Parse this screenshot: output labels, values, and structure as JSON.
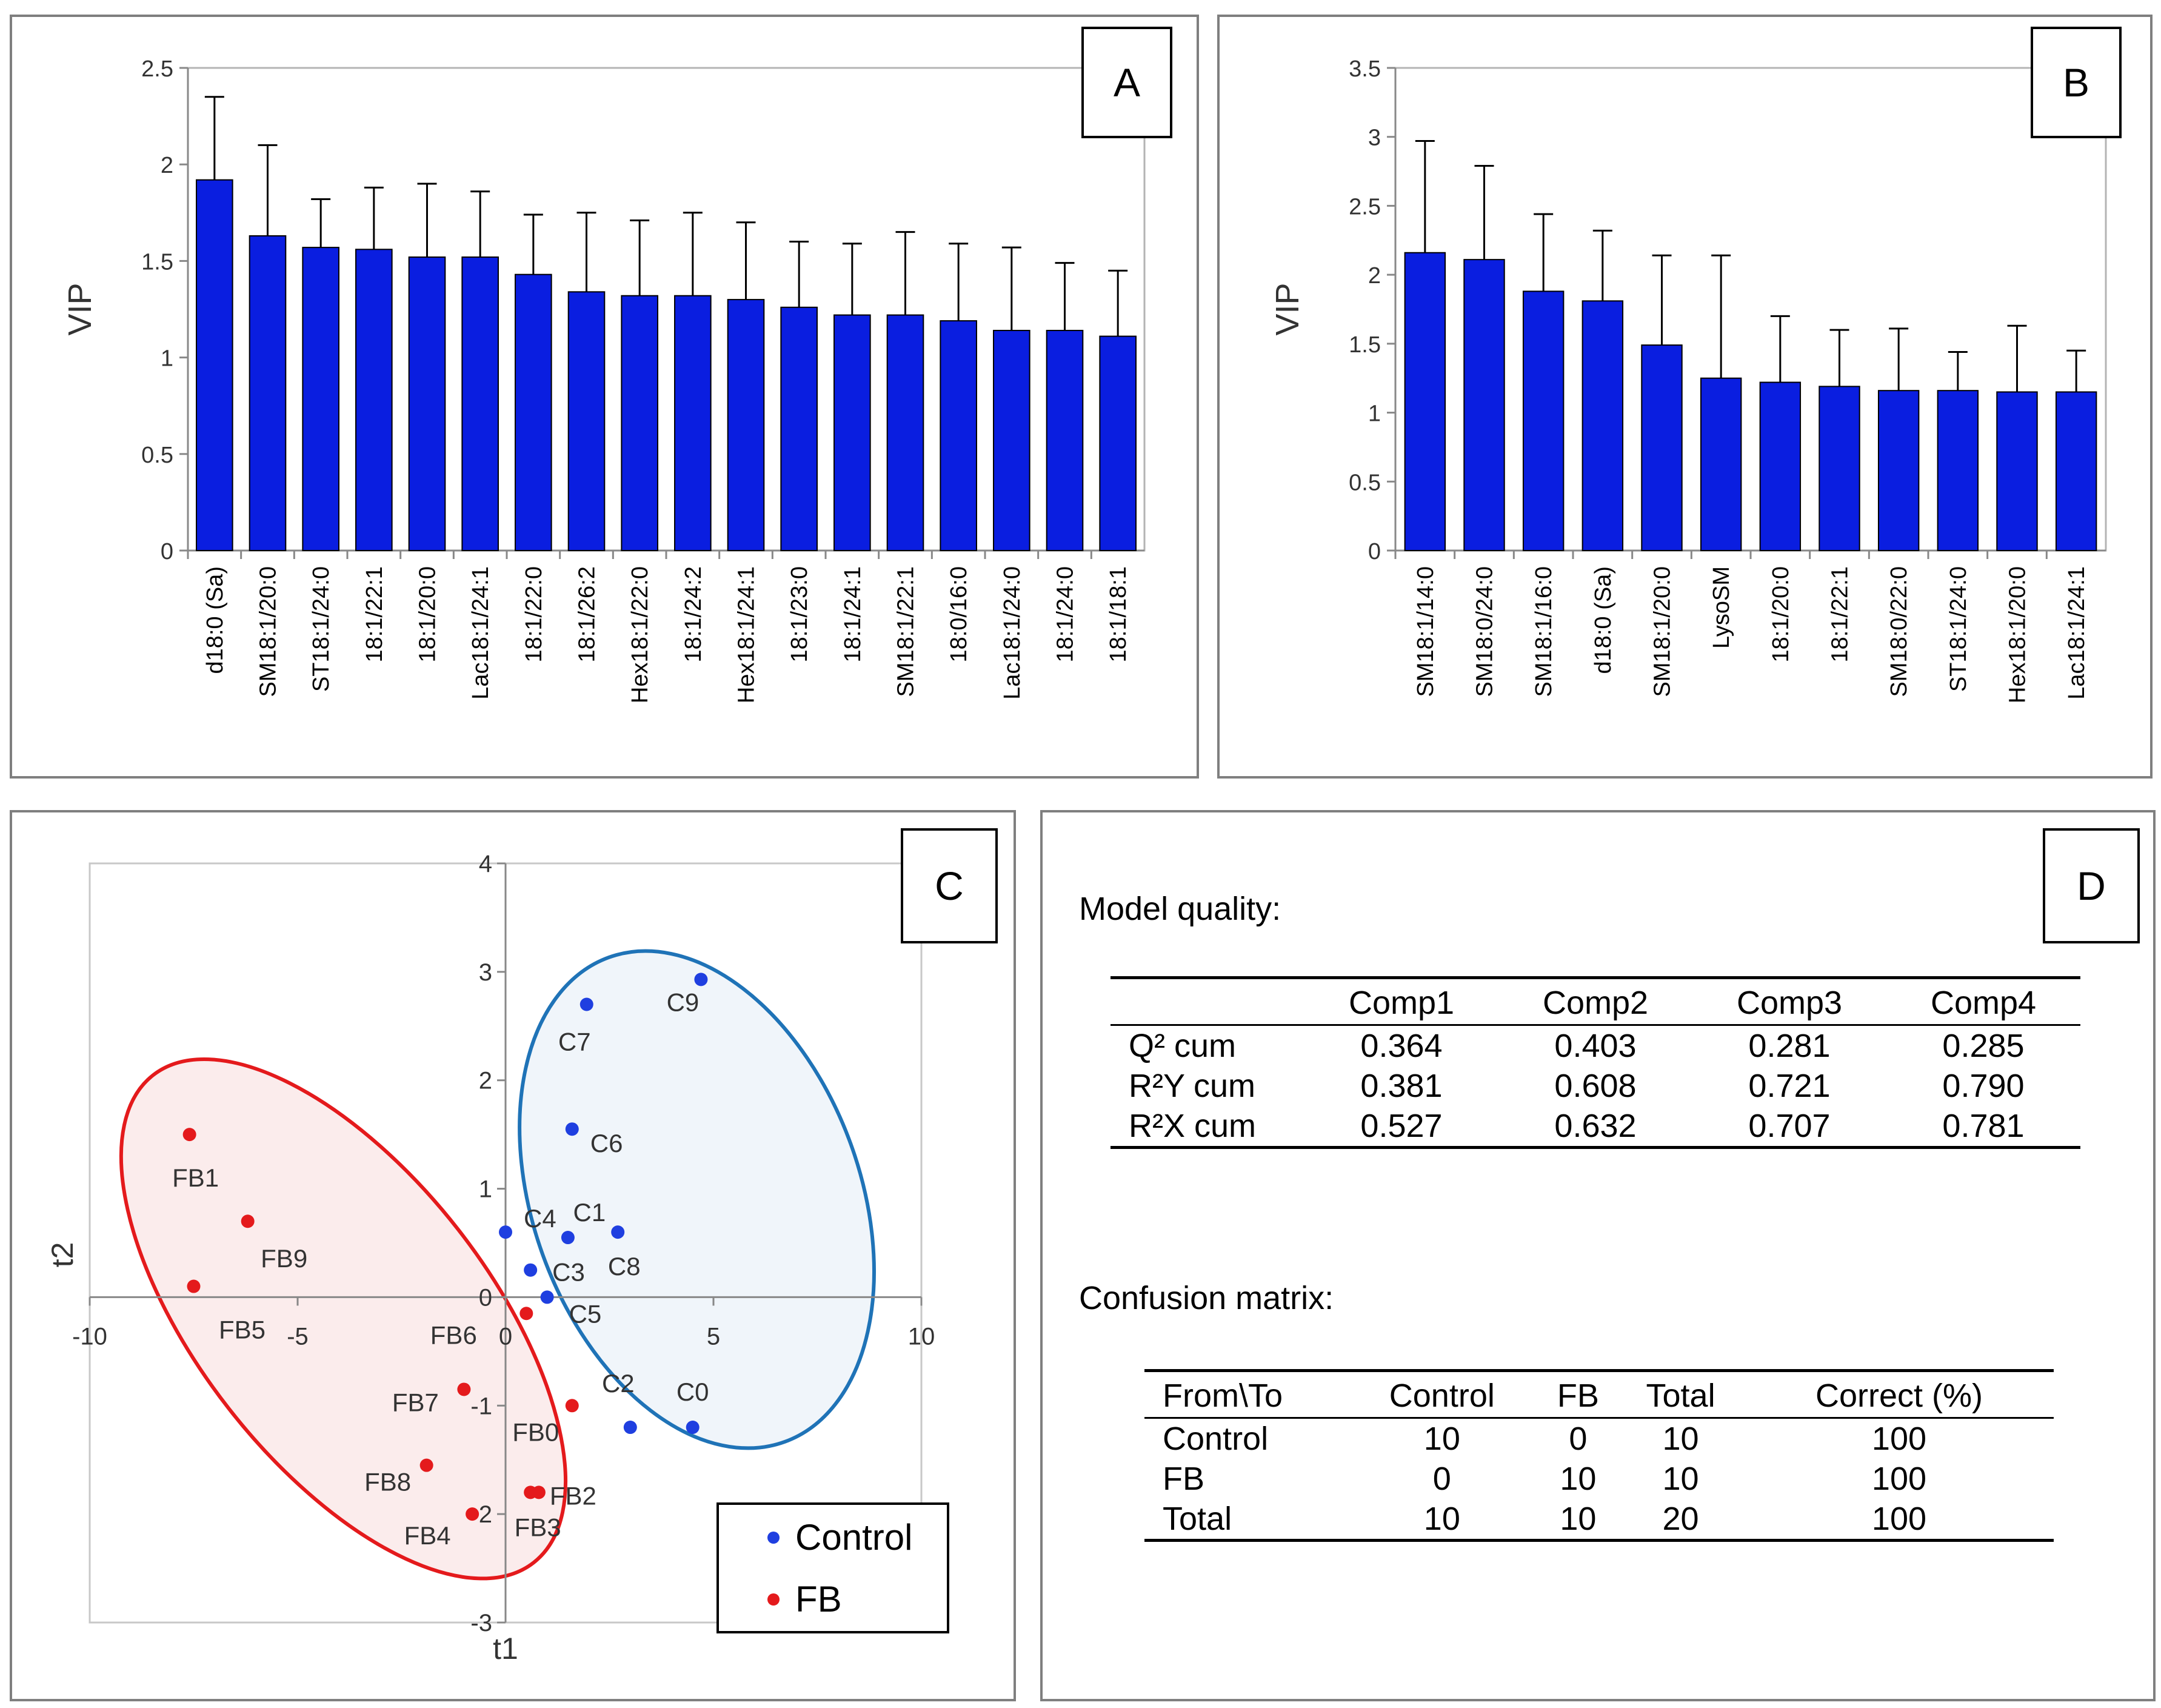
{
  "panels": {
    "A": {
      "label": "A"
    },
    "B": {
      "label": "B"
    },
    "C": {
      "label": "C"
    },
    "D": {
      "label": "D"
    }
  },
  "chart_data": [
    {
      "id": "A",
      "type": "bar",
      "ylabel": "VIP",
      "ylim": [
        0,
        2.5
      ],
      "yticks": [
        "0",
        "0.5",
        "1",
        "1.5",
        "2",
        "2.5"
      ],
      "color": "#0a1ee0",
      "categories": [
        "d18:0 (Sa)",
        "SM18:1/20:0",
        "ST18:1/24:0",
        "18:1/22:1",
        "18:1/20:0",
        "Lac18:1/24:1",
        "18:1/22:0",
        "18:1/26:2",
        "Hex18:1/22:0",
        "18:1/24:2",
        "Hex18:1/24:1",
        "18:1/23:0",
        "18:1/24:1",
        "SM18:1/22:1",
        "18:0/16:0",
        "Lac18:1/24:0",
        "18:1/24:0",
        "18:1/18:1"
      ],
      "values": [
        1.92,
        1.63,
        1.57,
        1.56,
        1.52,
        1.52,
        1.43,
        1.34,
        1.32,
        1.32,
        1.3,
        1.26,
        1.22,
        1.22,
        1.19,
        1.14,
        1.14,
        1.11
      ],
      "errors": [
        0.43,
        0.47,
        0.25,
        0.32,
        0.38,
        0.34,
        0.31,
        0.41,
        0.39,
        0.43,
        0.4,
        0.34,
        0.37,
        0.43,
        0.4,
        0.43,
        0.35,
        0.34
      ]
    },
    {
      "id": "B",
      "type": "bar",
      "ylabel": "VIP",
      "ylim": [
        0,
        3.5
      ],
      "yticks": [
        "0",
        "0.5",
        "1",
        "1.5",
        "2",
        "2.5",
        "3",
        "3.5"
      ],
      "color": "#0a1ee0",
      "categories": [
        "SM18:1/14:0",
        "SM18:0/24:0",
        "SM18:1/16:0",
        "d18:0 (Sa)",
        "SM18:1/20:0",
        "LysoSM",
        "18:1/20:0",
        "18:1/22:1",
        "SM18:0/22:0",
        "ST18:1/24:0",
        "Hex18:1/20:0",
        "Lac18:1/24:1"
      ],
      "values": [
        2.16,
        2.11,
        1.88,
        1.81,
        1.49,
        1.25,
        1.22,
        1.19,
        1.16,
        1.16,
        1.15,
        1.15
      ],
      "errors": [
        0.81,
        0.68,
        0.56,
        0.51,
        0.65,
        0.89,
        0.48,
        0.41,
        0.45,
        0.28,
        0.48,
        0.3
      ]
    },
    {
      "id": "C",
      "type": "scatter",
      "xlabel": "t1",
      "ylabel": "t2",
      "xlim": [
        -10,
        10
      ],
      "ylim": [
        -3,
        4
      ],
      "xticks": [
        "-10",
        "-5",
        "0",
        "5",
        "10"
      ],
      "yticks": [
        "-3",
        "-2",
        "-1",
        "0",
        "1",
        "2",
        "3",
        "4"
      ],
      "legend": {
        "position": "bottom-right"
      },
      "series": [
        {
          "name": "Control",
          "color": "#1f3fe0",
          "ellipse_color": "#1f73b7",
          "ellipse_fill": "#eef4fa",
          "points": [
            {
              "label": "C0",
              "x": 4.5,
              "y": -1.2
            },
            {
              "label": "C1",
              "x": 2.7,
              "y": 0.6
            },
            {
              "label": "C2",
              "x": 3.0,
              "y": -1.2
            },
            {
              "label": "C3",
              "x": 0.6,
              "y": 0.25
            },
            {
              "label": "C4",
              "x": 0.0,
              "y": 0.6
            },
            {
              "label": "C5",
              "x": 1.0,
              "y": 0.0
            },
            {
              "label": "C6",
              "x": 1.6,
              "y": 1.55
            },
            {
              "label": "C7",
              "x": 1.95,
              "y": 2.7
            },
            {
              "label": "C8",
              "x": 1.5,
              "y": 0.55
            },
            {
              "label": "C9",
              "x": 4.7,
              "y": 2.93
            }
          ]
        },
        {
          "name": "FB",
          "color": "#e41a1c",
          "ellipse_color": "#e41a1c",
          "ellipse_fill": "#fbeaea",
          "points": [
            {
              "label": "FB0",
              "x": 1.6,
              "y": -1.0
            },
            {
              "label": "FB1",
              "x": -7.6,
              "y": 1.5
            },
            {
              "label": "FB2",
              "x": 0.8,
              "y": -1.8
            },
            {
              "label": "FB3",
              "x": 0.6,
              "y": -1.8
            },
            {
              "label": "FB4",
              "x": -0.8,
              "y": -2.0
            },
            {
              "label": "FB5",
              "x": -7.5,
              "y": 0.1
            },
            {
              "label": "FB6",
              "x": 0.5,
              "y": -0.15
            },
            {
              "label": "FB7",
              "x": -1.0,
              "y": -0.85
            },
            {
              "label": "FB8",
              "x": -1.9,
              "y": -1.55
            },
            {
              "label": "FB9",
              "x": -6.2,
              "y": 0.7
            }
          ]
        }
      ]
    }
  ],
  "model_quality": {
    "title": "Model quality:",
    "columns": [
      "",
      "Comp1",
      "Comp2",
      "Comp3",
      "Comp4"
    ],
    "rows": [
      [
        "Q² cum",
        "0.364",
        "0.403",
        "0.281",
        "0.285"
      ],
      [
        "R²Y cum",
        "0.381",
        "0.608",
        "0.721",
        "0.790"
      ],
      [
        "R²X cum",
        "0.527",
        "0.632",
        "0.707",
        "0.781"
      ]
    ]
  },
  "confusion_matrix": {
    "title": "Confusion matrix:",
    "columns": [
      "From\\To",
      "Control",
      "FB",
      "Total",
      "Correct (%)"
    ],
    "rows": [
      [
        "Control",
        "10",
        "0",
        "10",
        "100"
      ],
      [
        "FB",
        "0",
        "10",
        "10",
        "100"
      ],
      [
        "Total",
        "10",
        "10",
        "20",
        "100"
      ]
    ]
  }
}
